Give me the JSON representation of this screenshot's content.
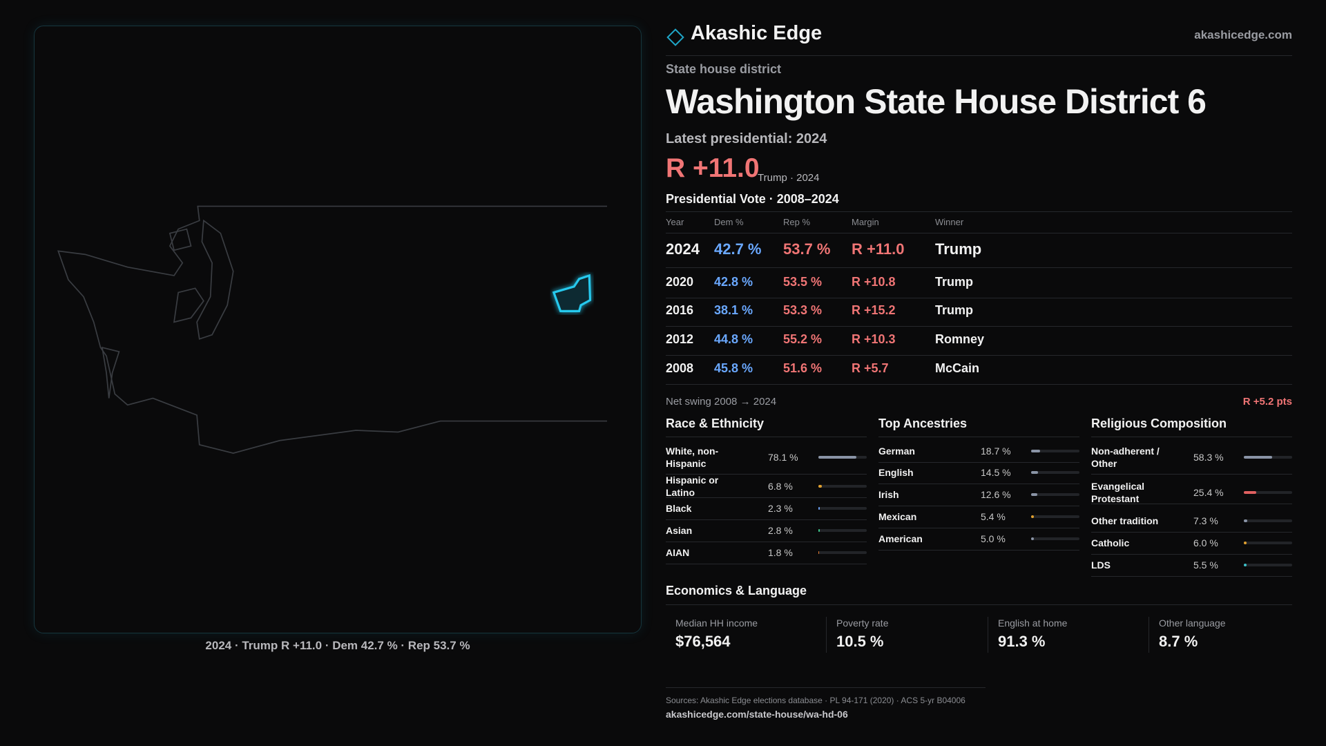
{
  "header": {
    "brand": "Akashic Edge",
    "site": "akashicedge.com"
  },
  "district": {
    "kicker": "State house district",
    "title": "Washington State House District 6",
    "latest": "Latest presidential: 2024",
    "margin": "R +11.0",
    "margin_note": "Trump · 2024"
  },
  "map_caption": "2024 · Trump R +11.0 · Dem 42.7 % · Rep 53.7 %",
  "vote_table": {
    "title": "Presidential Vote · 2008–2024",
    "columns": [
      "Year",
      "Dem %",
      "Rep %",
      "Margin",
      "Winner"
    ],
    "rows": [
      [
        "2024",
        "42.7 %",
        "53.7 %",
        "R +11.0",
        "Trump"
      ],
      [
        "2020",
        "42.8 %",
        "53.5 %",
        "R +10.8",
        "Trump"
      ],
      [
        "2016",
        "38.1 %",
        "53.3 %",
        "R +15.2",
        "Trump"
      ],
      [
        "2012",
        "44.8 %",
        "55.2 %",
        "R +10.3",
        "Romney"
      ],
      [
        "2008",
        "45.8 %",
        "51.6 %",
        "R +5.7",
        "McCain"
      ]
    ]
  },
  "net_swing": {
    "label": "Net swing 2008 → 2024",
    "value": "R +5.2 pts"
  },
  "race": {
    "title": "Race & Ethnicity",
    "items": [
      {
        "label": "White, non-Hispanic",
        "value": 78.1,
        "value_label": "78.1 %",
        "color": "#8a94a6"
      },
      {
        "label": "Hispanic or Latino",
        "value": 6.8,
        "value_label": "6.8 %",
        "color": "#e0a030"
      },
      {
        "label": "Black",
        "value": 2.3,
        "value_label": "2.3 %",
        "color": "#6a9ef0"
      },
      {
        "label": "Asian",
        "value": 2.8,
        "value_label": "2.8 %",
        "color": "#3cc88a"
      },
      {
        "label": "AIAN",
        "value": 1.8,
        "value_label": "1.8 %",
        "color": "#e07a30"
      }
    ]
  },
  "ancestry": {
    "title": "Top Ancestries",
    "items": [
      {
        "label": "German",
        "value": 18.7,
        "value_label": "18.7 %",
        "color": "#8a94a6"
      },
      {
        "label": "English",
        "value": 14.5,
        "value_label": "14.5 %",
        "color": "#8a94a6"
      },
      {
        "label": "Irish",
        "value": 12.6,
        "value_label": "12.6 %",
        "color": "#8a94a6"
      },
      {
        "label": "Mexican",
        "value": 5.4,
        "value_label": "5.4 %",
        "color": "#e0a030"
      },
      {
        "label": "American",
        "value": 5.0,
        "value_label": "5.0 %",
        "color": "#8a94a6"
      }
    ]
  },
  "religion": {
    "title": "Religious Composition",
    "items": [
      {
        "label": "Non-adherent / Other",
        "value": 58.3,
        "value_label": "58.3 %",
        "color": "#8a94a6"
      },
      {
        "label": "Evangelical Protestant",
        "value": 25.4,
        "value_label": "25.4 %",
        "color": "#e06060"
      },
      {
        "label": "Other tradition",
        "value": 7.3,
        "value_label": "7.3 %",
        "color": "#8a94a6"
      },
      {
        "label": "Catholic",
        "value": 6.0,
        "value_label": "6.0 %",
        "color": "#e0a030"
      },
      {
        "label": "LDS",
        "value": 5.5,
        "value_label": "5.5 %",
        "color": "#3cc0c8"
      }
    ]
  },
  "economics": {
    "title": "Economics & Language",
    "stats": [
      {
        "label": "Median HH income",
        "value": "$76,564"
      },
      {
        "label": "Poverty rate",
        "value": "10.5 %"
      },
      {
        "label": "English at home",
        "value": "91.3 %"
      },
      {
        "label": "Other language",
        "value": "8.7 %"
      }
    ]
  },
  "sources": {
    "text": "Sources: Akashic Edge elections database · PL 94-171 (2020) · ACS 5-yr B04006",
    "url": "akashicedge.com/state-house/wa-hd-06"
  }
}
